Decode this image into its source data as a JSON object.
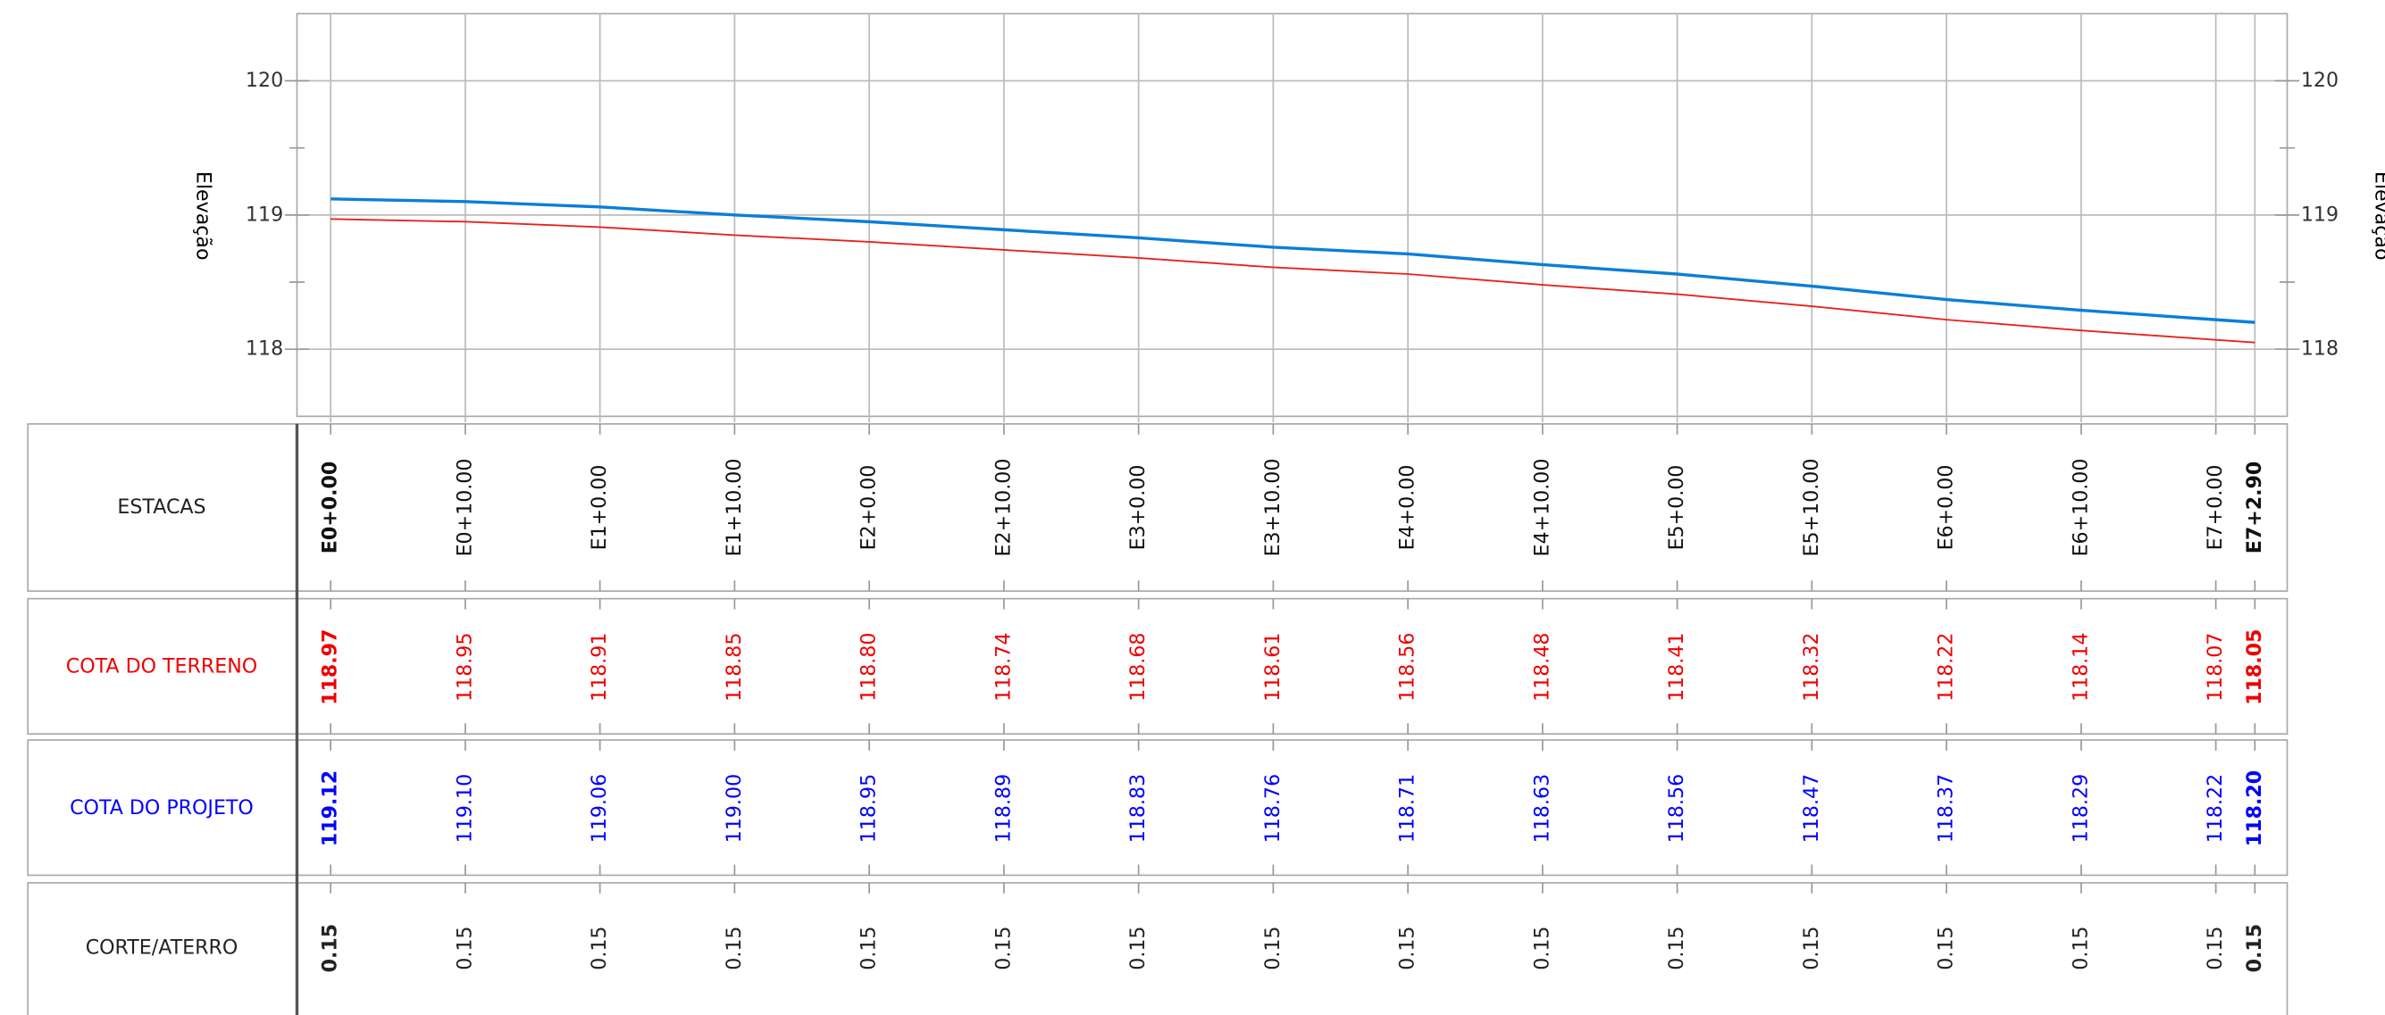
{
  "chart_data": {
    "type": "line",
    "y_label": "Elevação",
    "x_label": "ESTACAS",
    "x": [
      0,
      10,
      20,
      30,
      40,
      50,
      60,
      70,
      80,
      90,
      100,
      110,
      120,
      130,
      140,
      142.9
    ],
    "x_labels": [
      "E0+0.00",
      "E0+10.00",
      "E1+0.00",
      "E1+10.00",
      "E2+0.00",
      "E2+10.00",
      "E3+0.00",
      "E3+10.00",
      "E4+0.00",
      "E4+10.00",
      "E5+0.00",
      "E5+10.00",
      "E6+0.00",
      "E6+10.00",
      "E7+0.00",
      "E7+2.90"
    ],
    "xlim": [
      -2.5,
      145.3
    ],
    "ylim": [
      117.5,
      120.5
    ],
    "yticks": [
      118,
      119,
      120
    ],
    "yticks_minor": [
      118.5,
      119.5
    ],
    "grid": true,
    "series": [
      {
        "name": "COTA DO TERRENO",
        "color": "#e8221e",
        "values": [
          118.97,
          118.95,
          118.91,
          118.85,
          118.8,
          118.74,
          118.68,
          118.61,
          118.56,
          118.48,
          118.41,
          118.32,
          118.22,
          118.14,
          118.07,
          118.05
        ],
        "value_labels": [
          "118.97",
          "118.95",
          "118.91",
          "118.85",
          "118.80",
          "118.74",
          "118.68",
          "118.61",
          "118.56",
          "118.48",
          "118.41",
          "118.32",
          "118.22",
          "118.14",
          "118.07",
          "118.05"
        ]
      },
      {
        "name": "COTA DO PROJETO",
        "color": "#0a7fd8",
        "values": [
          119.12,
          119.1,
          119.06,
          119,
          118.95,
          118.89,
          118.83,
          118.76,
          118.71,
          118.63,
          118.56,
          118.47,
          118.37,
          118.29,
          118.22,
          118.2
        ],
        "value_labels": [
          "119.12",
          "119.10",
          "119.06",
          "119.00",
          "118.95",
          "118.89",
          "118.83",
          "118.76",
          "118.71",
          "118.63",
          "118.56",
          "118.47",
          "118.37",
          "118.29",
          "118.22",
          "118.20"
        ]
      }
    ],
    "corte_aterro": {
      "name": "CORTE/ATERRO",
      "values": [
        0.15,
        0.15,
        0.15,
        0.15,
        0.15,
        0.15,
        0.15,
        0.15,
        0.15,
        0.15,
        0.15,
        0.15,
        0.15,
        0.15,
        0.15,
        0.15
      ]
    }
  }
}
